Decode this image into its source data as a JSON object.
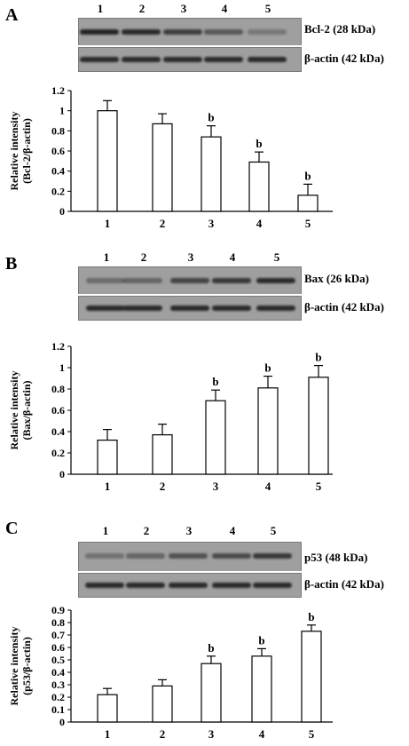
{
  "chart_data": [
    {
      "type": "bar",
      "panel": "A",
      "lanes": [
        "1",
        "2",
        "3",
        "4",
        "5"
      ],
      "blot_labels": [
        "Bcl-2 (28 kDa)",
        "β-actin (42 kDa)"
      ],
      "categories": [
        "1",
        "2",
        "3",
        "4",
        "5"
      ],
      "values": [
        1.0,
        0.87,
        0.74,
        0.49,
        0.16
      ],
      "errors": [
        0.1,
        0.1,
        0.11,
        0.1,
        0.11
      ],
      "significance": [
        "",
        "",
        "b",
        "b",
        "b"
      ],
      "ylabel": [
        "Relative intensity",
        "(Bcl-2/β-actin)"
      ],
      "yticks": [
        "0",
        "0.2",
        "0.4",
        "0.6",
        "0.8",
        "1",
        "1.2"
      ],
      "ylim": [
        0,
        1.2
      ],
      "band_intensity": [
        0.95,
        0.9,
        0.75,
        0.55,
        0.3
      ]
    },
    {
      "type": "bar",
      "panel": "B",
      "lanes": [
        "1",
        "2",
        "3",
        "4",
        "5"
      ],
      "blot_labels": [
        "Bax (26 kDa)",
        "β-actin (42 kDa)"
      ],
      "categories": [
        "1",
        "2",
        "3",
        "4",
        "5"
      ],
      "values": [
        0.32,
        0.37,
        0.69,
        0.81,
        0.91
      ],
      "errors": [
        0.1,
        0.1,
        0.1,
        0.11,
        0.11
      ],
      "significance": [
        "",
        "",
        "b",
        "b",
        "b"
      ],
      "ylabel": [
        "Relative intensity",
        "(Bax/β-actin)"
      ],
      "yticks": [
        "0",
        "0.2",
        "0.4",
        "0.6",
        "0.8",
        "1",
        "1.2"
      ],
      "ylim": [
        0,
        1.2
      ],
      "band_intensity": [
        0.4,
        0.45,
        0.7,
        0.8,
        0.9
      ]
    },
    {
      "type": "bar",
      "panel": "C",
      "lanes": [
        "1",
        "2",
        "3",
        "4",
        "5"
      ],
      "blot_labels": [
        "p53 (48 kDa)",
        "β-actin (42 kDa)"
      ],
      "categories": [
        "1",
        "2",
        "3",
        "4",
        "5"
      ],
      "values": [
        0.22,
        0.29,
        0.47,
        0.53,
        0.73
      ],
      "errors": [
        0.05,
        0.05,
        0.06,
        0.06,
        0.05
      ],
      "significance": [
        "",
        "",
        "b",
        "b",
        "b"
      ],
      "ylabel": [
        "Relative intensity",
        "(p53/β-actin)"
      ],
      "yticks": [
        "0",
        "0.1",
        "0.2",
        "0.3",
        "0.4",
        "0.5",
        "0.6",
        "0.7",
        "0.8",
        "0.9"
      ],
      "ylim": [
        0,
        0.9
      ],
      "band_intensity": [
        0.35,
        0.45,
        0.6,
        0.65,
        0.8
      ]
    }
  ]
}
